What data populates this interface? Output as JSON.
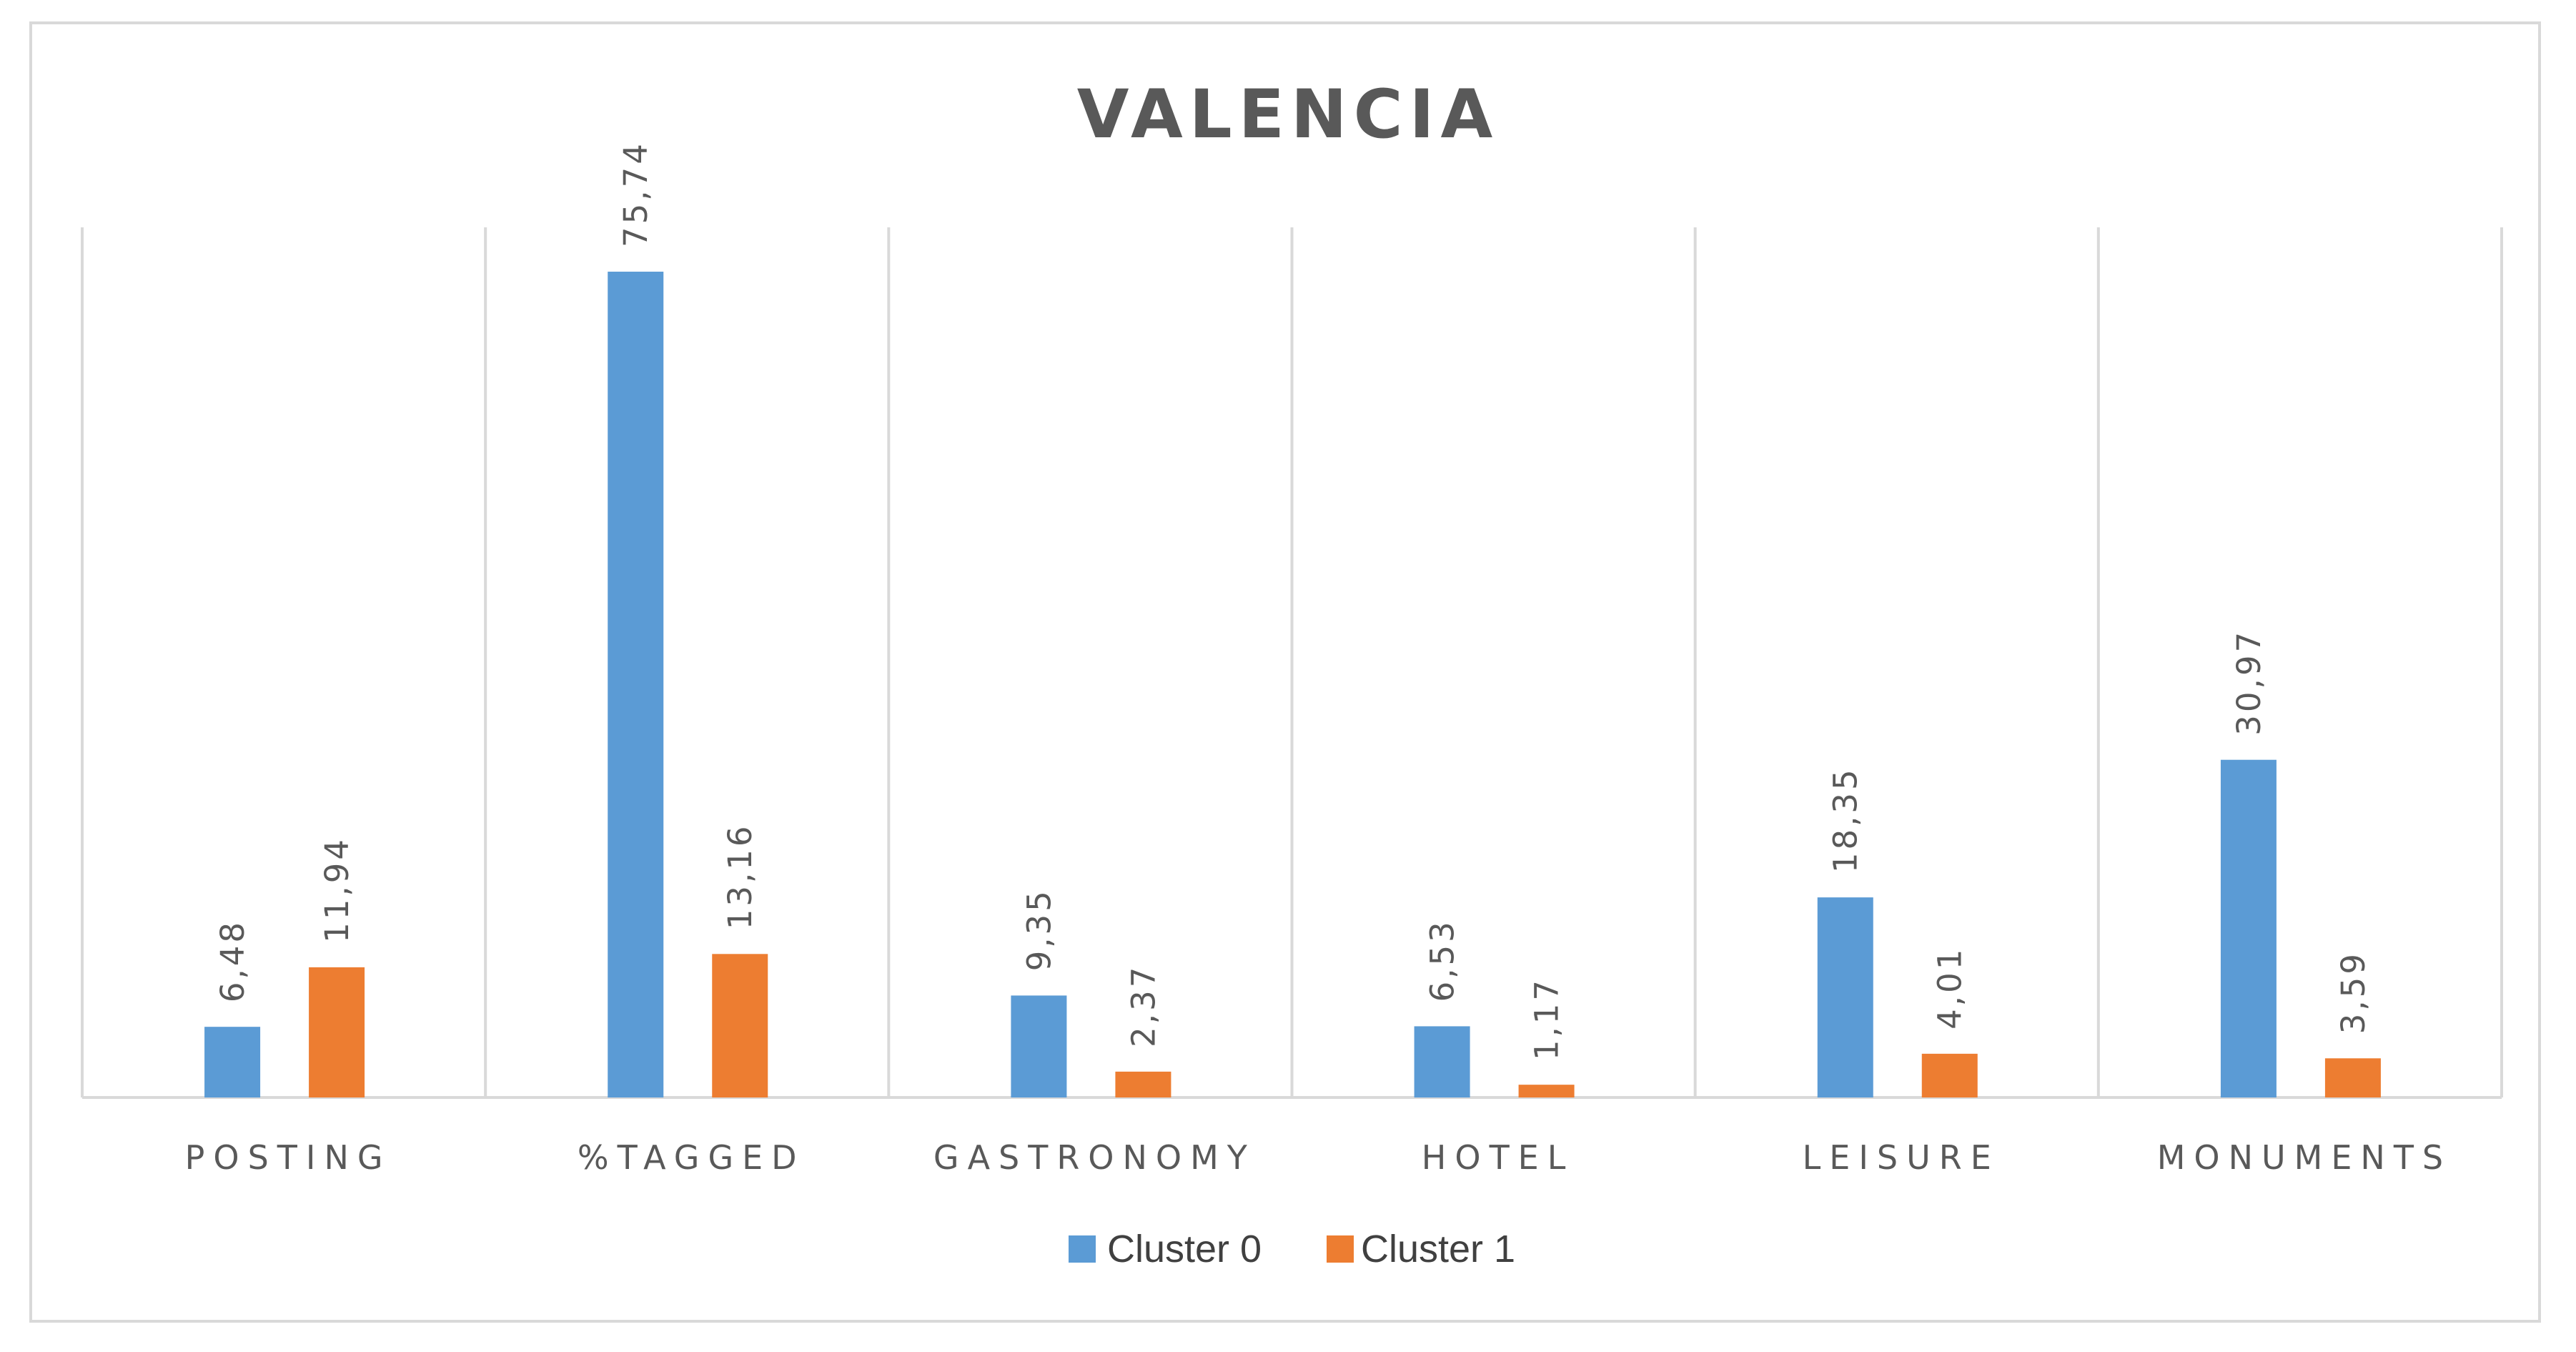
{
  "chart_data": {
    "type": "bar",
    "title": "VALENCIA",
    "categories": [
      "POSTING",
      "%TAGGED",
      "GASTRONOMY",
      "HOTEL",
      "LEISURE",
      "MONUMENTS"
    ],
    "series": [
      {
        "name": "Cluster 0",
        "color": "#5b9bd5",
        "values": [
          6.48,
          75.74,
          9.35,
          6.53,
          18.35,
          30.97
        ],
        "labels": [
          "6,48",
          "75,74",
          "9,35",
          "6,53",
          "18,35",
          "30,97"
        ]
      },
      {
        "name": "Cluster 1",
        "color": "#ed7d31",
        "values": [
          11.94,
          13.16,
          2.37,
          1.17,
          4.01,
          3.59
        ],
        "labels": [
          "11,94",
          "13,16",
          "2,37",
          "1,17",
          "4,01",
          "3,59"
        ]
      }
    ],
    "xlabel": "",
    "ylabel": "",
    "ylim": [
      0,
      80
    ],
    "grid": "vertical category separators",
    "legend": "bottom"
  }
}
